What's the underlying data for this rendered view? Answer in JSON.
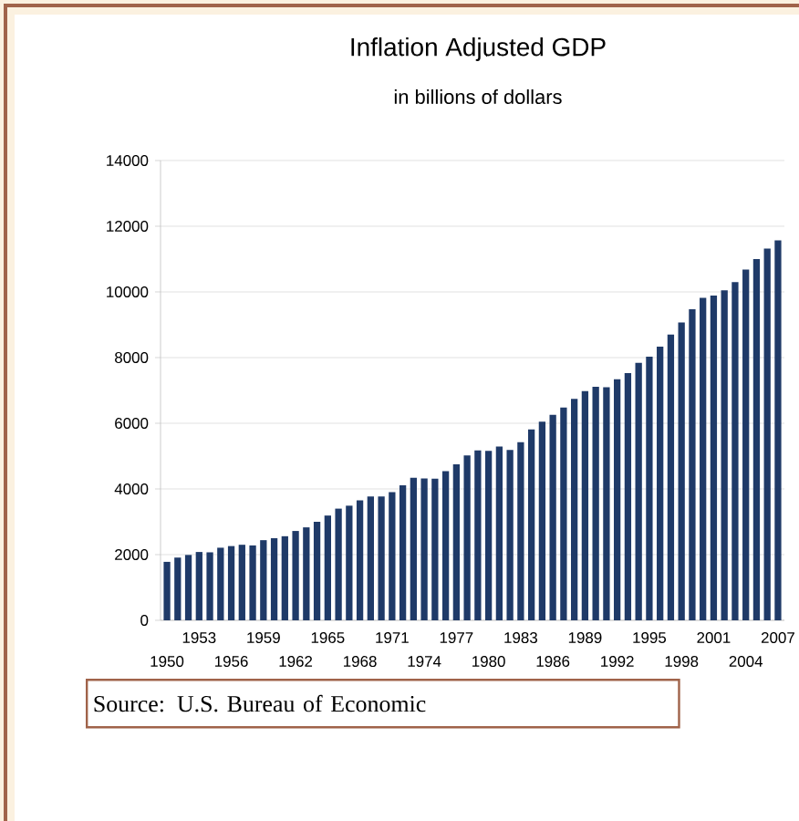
{
  "chart_data": {
    "type": "bar",
    "title": "Inflation Adjusted GDP",
    "subtitle": "in billions of dollars",
    "categories": [
      "1950",
      null,
      null,
      "1953",
      null,
      null,
      "1956",
      null,
      null,
      "1959",
      null,
      null,
      "1962",
      null,
      null,
      "1965",
      null,
      null,
      "1968",
      null,
      null,
      "1971",
      null,
      null,
      "1974",
      null,
      null,
      "1977",
      null,
      null,
      "1980",
      null,
      null,
      "1983",
      null,
      null,
      "1986",
      null,
      null,
      "1989",
      null,
      null,
      "1992",
      null,
      null,
      "1995",
      null,
      null,
      "1998",
      null,
      null,
      "2001",
      null,
      null,
      "2004",
      null,
      null,
      "2007"
    ],
    "values": [
      1780,
      1910,
      1990,
      2080,
      2070,
      2210,
      2260,
      2300,
      2280,
      2440,
      2500,
      2560,
      2720,
      2830,
      3000,
      3190,
      3400,
      3490,
      3650,
      3770,
      3770,
      3900,
      4110,
      4340,
      4320,
      4310,
      4540,
      4750,
      5020,
      5170,
      5160,
      5290,
      5190,
      5420,
      5810,
      6050,
      6260,
      6480,
      6740,
      6980,
      7110,
      7100,
      7340,
      7530,
      7840,
      8030,
      8330,
      8700,
      9070,
      9470,
      9820,
      9890,
      10050,
      10300,
      10680,
      11000,
      11320,
      11570
    ],
    "color": "#1f3a68",
    "ylim": [
      0,
      14000
    ],
    "yticks": [
      0,
      2000,
      4000,
      6000,
      8000,
      10000,
      12000,
      14000
    ],
    "grid": "y",
    "annotations": [
      "Source: U.S. Bureau of Economic"
    ]
  }
}
